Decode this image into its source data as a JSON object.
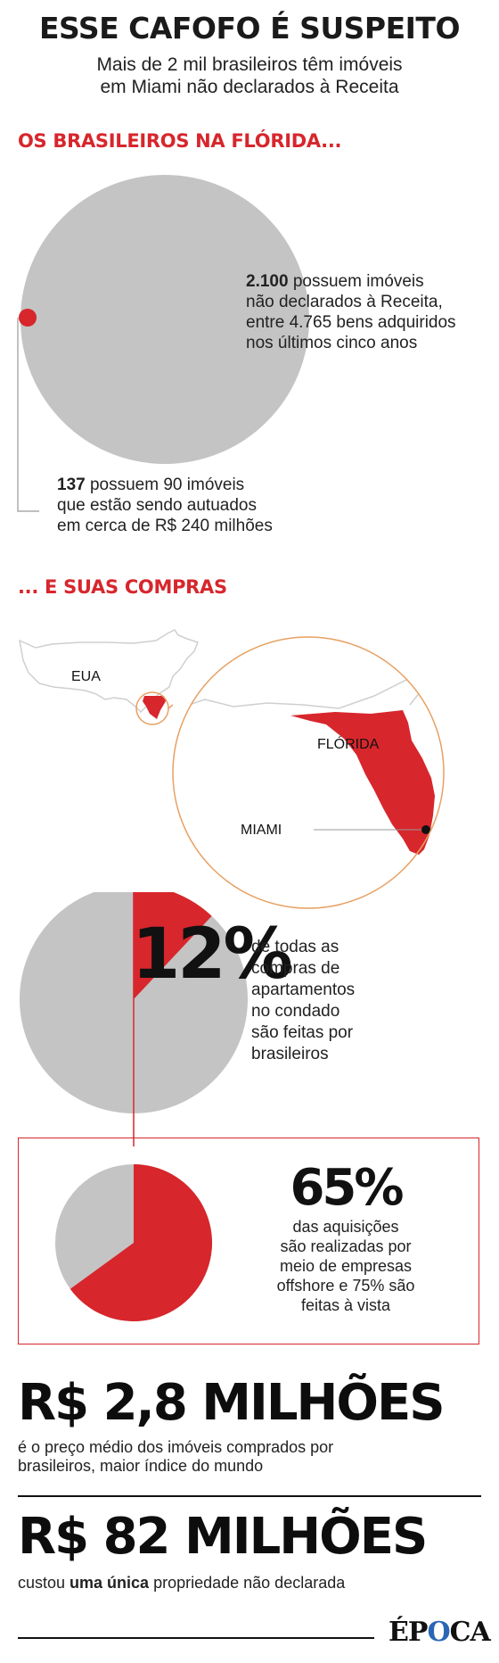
{
  "header": {
    "title": "ESSE CAFOFO É SUSPEITO",
    "subtitle_line1": "Mais de 2 mil brasileiros têm imóveis",
    "subtitle_line2": "em Miami não declarados à Receita"
  },
  "section1": {
    "heading": "OS BRASILEIROS NA FLÓRIDA...",
    "stat1_number": "2.100",
    "stat1_line1": " possuem imóveis",
    "stat1_line2": "não declarados à Receita,",
    "stat1_line3": "entre 4.765 bens adquiridos",
    "stat1_line4": "nos últimos cinco anos",
    "stat2_number": "137",
    "stat2_line1": " possuem 90 imóveis",
    "stat2_line2": "que estão sendo autuados",
    "stat2_line3": "em cerca de R$ 240 milhões"
  },
  "section2": {
    "heading": "... E SUAS COMPRAS",
    "map_label_country": "EUA",
    "map_label_state": "FLÓRIDA",
    "map_label_city": "MIAMI",
    "pie1_value": "12%",
    "pie1_line1": "de todas as",
    "pie1_line2": "compras de",
    "pie1_line3": "apartamentos",
    "pie1_line4": "no condado",
    "pie1_line5": "são feitas por",
    "pie1_line6": "brasileiros",
    "pie2_value": "65%",
    "pie2_line1": "das aquisições",
    "pie2_line2": "são realizadas por",
    "pie2_line3": "meio de empresas",
    "pie2_line4": "offshore e 75% são",
    "pie2_line5": "feitas à vista"
  },
  "section3": {
    "stat_a_value": "R$ 2,8 MILHÕES",
    "stat_a_line1": "é o preço médio dos imóveis comprados por",
    "stat_a_line2": "brasileiros, maior índice do mundo",
    "stat_b_value": "R$ 82 MILHÕES",
    "stat_b_pre": "custou ",
    "stat_b_bold": "uma única",
    "stat_b_post": " propriedade não declarada"
  },
  "footer": {
    "logo_pre": "ÉP",
    "logo_o": "O",
    "logo_post": "CA"
  },
  "colors": {
    "red": "#d7262c",
    "grey": "#c4c4c4",
    "orange": "#e8a063",
    "black": "#111111"
  },
  "chart_data": [
    {
      "type": "pie",
      "values": [
        2100,
        4765
      ],
      "note_values_printed": [
        "2.100",
        "4.765",
        "137"
      ]
    },
    {
      "type": "pie",
      "values": [
        12,
        88
      ],
      "labels": [
        "12%",
        ""
      ]
    },
    {
      "type": "pie",
      "values": [
        65,
        35
      ],
      "labels": [
        "65%",
        ""
      ]
    }
  ]
}
